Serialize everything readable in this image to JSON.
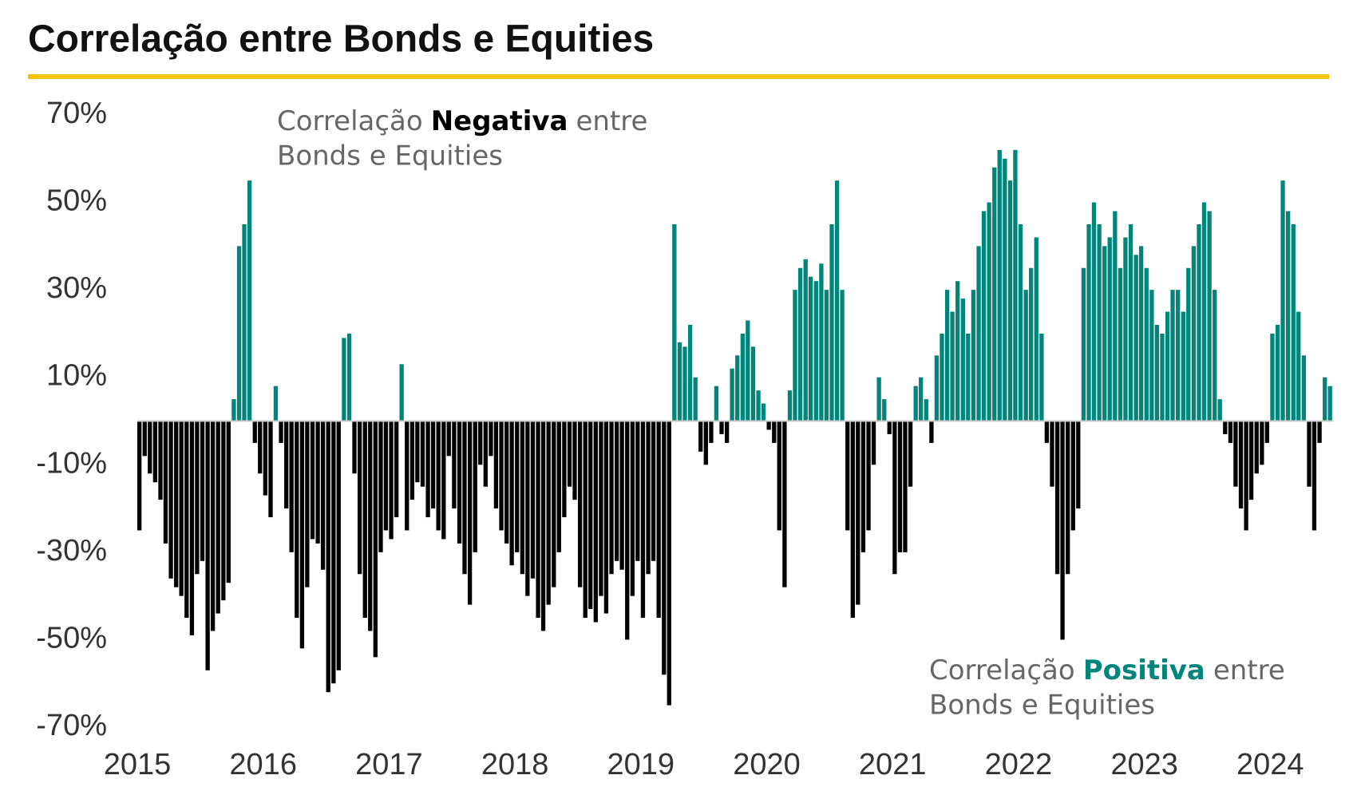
{
  "chart_data": {
    "type": "bar",
    "title": "Correlação entre Bonds e Equities",
    "annotations": [
      {
        "prefix": "Correlação",
        "emphasis": "Negativa",
        "suffix": "entre",
        "line2": "Bonds e Equities",
        "emphasis_color": "#000000"
      },
      {
        "prefix": "Correlação",
        "emphasis": "Positiva",
        "suffix": "entre",
        "line2": "Bonds e Equities",
        "emphasis_color": "#00857a"
      }
    ],
    "positive_color": "#00857a",
    "negative_color": "#000000",
    "x": [
      2015.0,
      2015.042,
      2015.083,
      2015.125,
      2015.167,
      2015.208,
      2015.25,
      2015.292,
      2015.333,
      2015.375,
      2015.417,
      2015.458,
      2015.5,
      2015.542,
      2015.583,
      2015.625,
      2015.667,
      2015.708,
      2015.75,
      2015.792,
      2015.833,
      2015.875,
      2015.917,
      2015.958,
      2016.0,
      2016.042,
      2016.083,
      2016.125,
      2016.167,
      2016.208,
      2016.25,
      2016.292,
      2016.333,
      2016.375,
      2016.417,
      2016.458,
      2016.5,
      2016.542,
      2016.583,
      2016.625,
      2016.667,
      2016.708,
      2016.75,
      2016.792,
      2016.833,
      2016.875,
      2016.917,
      2016.958,
      2017.0,
      2017.042,
      2017.083,
      2017.125,
      2017.167,
      2017.208,
      2017.25,
      2017.292,
      2017.333,
      2017.375,
      2017.417,
      2017.458,
      2017.5,
      2017.542,
      2017.583,
      2017.625,
      2017.667,
      2017.708,
      2017.75,
      2017.792,
      2017.833,
      2017.875,
      2017.917,
      2017.958,
      2018.0,
      2018.042,
      2018.083,
      2018.125,
      2018.167,
      2018.208,
      2018.25,
      2018.292,
      2018.333,
      2018.375,
      2018.417,
      2018.458,
      2018.5,
      2018.542,
      2018.583,
      2018.625,
      2018.667,
      2018.708,
      2018.75,
      2018.792,
      2018.833,
      2018.875,
      2018.917,
      2018.958,
      2019.0,
      2019.042,
      2019.083,
      2019.125,
      2019.167,
      2019.208,
      2019.25,
      2019.292,
      2019.333,
      2019.375,
      2019.417,
      2019.458,
      2019.5,
      2019.542,
      2019.583,
      2019.625,
      2019.667,
      2019.708,
      2019.75,
      2019.792,
      2019.833,
      2019.875,
      2019.917,
      2019.958,
      2020.0,
      2020.042,
      2020.083,
      2020.125,
      2020.167,
      2020.208,
      2020.25,
      2020.292,
      2020.333,
      2020.375,
      2020.417,
      2020.458,
      2020.5,
      2020.542,
      2020.583,
      2020.625,
      2020.667,
      2020.708,
      2020.75,
      2020.792,
      2020.833,
      2020.875,
      2020.917,
      2020.958,
      2021.0,
      2021.042,
      2021.083,
      2021.125,
      2021.167,
      2021.208,
      2021.25,
      2021.292,
      2021.333,
      2021.375,
      2021.417,
      2021.458,
      2021.5,
      2021.542,
      2021.583,
      2021.625,
      2021.667,
      2021.708,
      2021.75,
      2021.792,
      2021.833,
      2021.875,
      2021.917,
      2021.958,
      2022.0,
      2022.042,
      2022.083,
      2022.125,
      2022.167,
      2022.208,
      2022.25,
      2022.292,
      2022.333,
      2022.375,
      2022.417,
      2022.458,
      2022.5,
      2022.542,
      2022.583,
      2022.625,
      2022.667,
      2022.708,
      2022.75,
      2022.792,
      2022.833,
      2022.875,
      2022.917,
      2022.958,
      2023.0,
      2023.042,
      2023.083,
      2023.125,
      2023.167,
      2023.208,
      2023.25,
      2023.292,
      2023.333,
      2023.375,
      2023.417,
      2023.458,
      2023.5,
      2023.542,
      2023.583,
      2023.625,
      2023.667,
      2023.708,
      2023.75,
      2023.792,
      2023.833,
      2023.875,
      2023.917,
      2023.958,
      2024.0,
      2024.042,
      2024.083,
      2024.125,
      2024.167,
      2024.208,
      2024.25,
      2024.292,
      2024.333,
      2024.375,
      2024.417,
      2024.458
    ],
    "values": [
      -25,
      -8,
      -12,
      -14,
      -18,
      -28,
      -36,
      -38,
      -40,
      -45,
      -49,
      -35,
      -32,
      -57,
      -48,
      -44,
      -41,
      -37,
      5,
      40,
      45,
      55,
      -5,
      -12,
      -17,
      -22,
      8,
      -5,
      -20,
      -30,
      -45,
      -52,
      -38,
      -27,
      -28,
      -34,
      -62,
      -60,
      -57,
      19,
      20,
      -12,
      -35,
      -45,
      -48,
      -54,
      -30,
      -25,
      -27,
      -22,
      13,
      -25,
      -18,
      -14,
      -15,
      -22,
      -20,
      -25,
      -27,
      -8,
      -20,
      -28,
      -35,
      -42,
      -30,
      -10,
      -15,
      -8,
      -20,
      -25,
      -28,
      -33,
      -30,
      -35,
      -40,
      -36,
      -45,
      -48,
      -42,
      -38,
      -30,
      -22,
      -15,
      -18,
      -38,
      -45,
      -43,
      -46,
      -40,
      -44,
      -35,
      -32,
      -34,
      -50,
      -40,
      -32,
      -45,
      -35,
      -32,
      -45,
      -58,
      -65,
      45,
      18,
      17,
      22,
      10,
      -7,
      -10,
      -5,
      8,
      -3,
      -5,
      12,
      15,
      20,
      23,
      17,
      7,
      4,
      -2,
      -5,
      -25,
      -38,
      7,
      30,
      35,
      37,
      33,
      32,
      36,
      30,
      45,
      55,
      30,
      -25,
      -45,
      -42,
      -30,
      -25,
      -10,
      10,
      5,
      -3,
      -35,
      -30,
      -30,
      -15,
      8,
      10,
      5,
      -5,
      15,
      20,
      30,
      25,
      32,
      28,
      20,
      30,
      40,
      48,
      50,
      58,
      62,
      60,
      55,
      62,
      45,
      30,
      35,
      42,
      20,
      -5,
      -15,
      -35,
      -50,
      -35,
      -25,
      -20,
      35,
      45,
      50,
      45,
      40,
      42,
      48,
      35,
      42,
      45,
      38,
      40,
      35,
      30,
      22,
      20,
      25,
      30,
      30,
      25,
      35,
      40,
      45,
      50,
      48,
      30,
      5,
      -3,
      -5,
      -15,
      -20,
      -25,
      -18,
      -12,
      -10,
      -5,
      20,
      22,
      55,
      48,
      45,
      25,
      15,
      -15,
      -25,
      -5,
      10,
      8
    ],
    "xlim": [
      2015,
      2024.5
    ],
    "xticks": [
      2015,
      2016,
      2017,
      2018,
      2019,
      2020,
      2021,
      2022,
      2023,
      2024
    ],
    "ylim": [
      -70,
      70
    ],
    "yticks": [
      {
        "value": 70,
        "label": "70%"
      },
      {
        "value": 50,
        "label": "50%"
      },
      {
        "value": 30,
        "label": "30%"
      },
      {
        "value": 10,
        "label": "10%"
      },
      {
        "value": -10,
        "label": "-10%"
      },
      {
        "value": -30,
        "label": "-30%"
      },
      {
        "value": -50,
        "label": "-50%"
      },
      {
        "value": -70,
        "label": "-70%"
      }
    ],
    "grid": false
  }
}
